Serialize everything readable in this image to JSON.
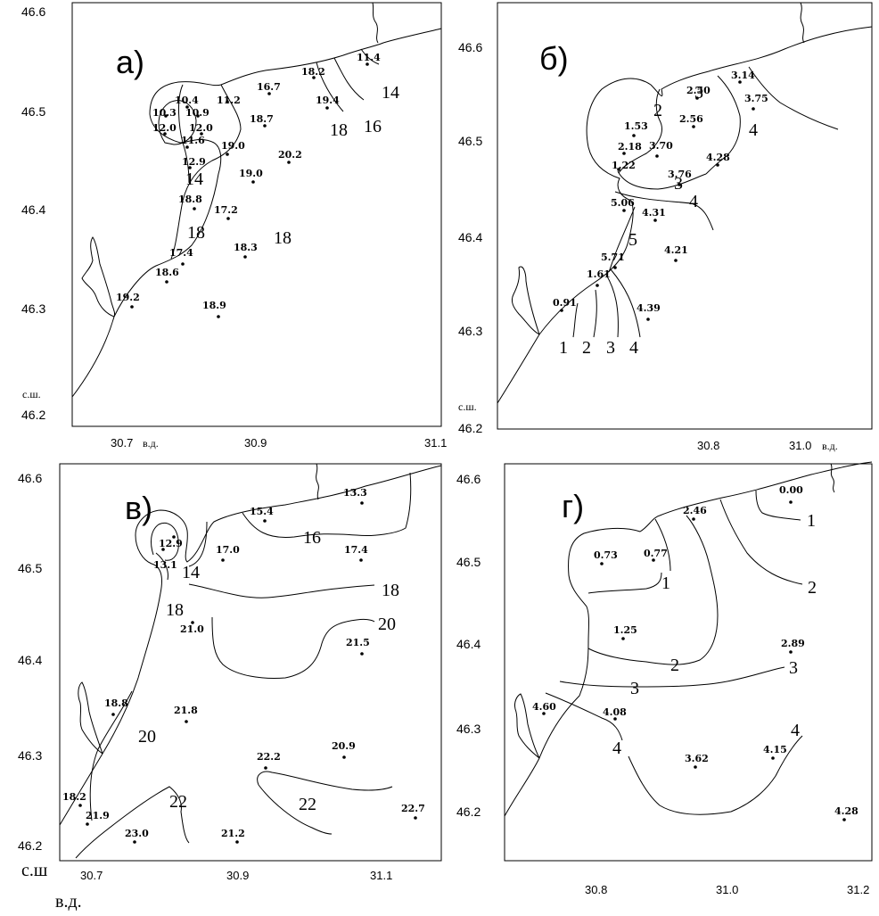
{
  "units": {
    "lat_short": "с.ш.",
    "lon_short": "в.д.",
    "lat_big": "с.ш",
    "lon_big": "в.д."
  },
  "panels": [
    {
      "id": "a",
      "label": "а)",
      "yticks": [
        "46.6",
        "46.5",
        "46.4",
        "46.3",
        "46.2"
      ],
      "xticks": [
        "30.7",
        "30.9",
        "31.1"
      ],
      "stations": [
        "11.4",
        "18.2",
        "16.7",
        "11.2",
        "10.4",
        "10.3",
        "10.9",
        "12.0",
        "12.0",
        "11.6",
        "19.4",
        "18.7",
        "19.0",
        "12.9",
        "20.2",
        "19.0",
        "18.8",
        "17.2",
        "17.4",
        "18.3",
        "18.6",
        "19.2",
        "18.9"
      ],
      "isolines": [
        "14",
        "16",
        "18",
        "14",
        "18",
        "18"
      ]
    },
    {
      "id": "b",
      "label": "б)",
      "yticks": [
        "46.6",
        "46.5",
        "46.4",
        "46.3",
        "46.2"
      ],
      "xticks": [
        "30.8",
        "31.0"
      ],
      "stations": [
        "3.14",
        "2.50",
        "3.75",
        "2.56",
        "1.53",
        "2.18",
        "3.70",
        "4.28",
        "1.22",
        "3.76",
        "5.06",
        "4.31",
        "4.21",
        "5.71",
        "1.61",
        "0.91",
        "4.39"
      ],
      "isolines": [
        "3",
        "2",
        "4",
        "3",
        "4",
        "5",
        "1",
        "2",
        "3",
        "4"
      ]
    },
    {
      "id": "c",
      "label": "в)",
      "yticks": [
        "46.6",
        "46.5",
        "46.4",
        "46.3",
        "46.2"
      ],
      "xticks": [
        "30.7",
        "30.9",
        "31.1"
      ],
      "stations": [
        "13.3",
        "15.4",
        "12.9",
        "17.0",
        "17.4",
        "13.1",
        "21.0",
        "21.5",
        "18.8",
        "21.8",
        "22.2",
        "20.9",
        "18.2",
        "21.9",
        "23.0",
        "21.2",
        "22.7"
      ],
      "isolines": [
        "16",
        "14",
        "18",
        "18",
        "20",
        "20",
        "22",
        "22"
      ]
    },
    {
      "id": "d",
      "label": "г)",
      "yticks": [
        "46.6",
        "46.5",
        "46.4",
        "46.3",
        "46.2"
      ],
      "xticks": [
        "30.8",
        "31.0",
        "31.2"
      ],
      "stations": [
        "0.00",
        "2.46",
        "0.73",
        "0.77",
        "1.25",
        "2.89",
        "4.60",
        "4.08",
        "3.62",
        "4.15",
        "4.28"
      ],
      "isolines": [
        "1",
        "1",
        "2",
        "2",
        "3",
        "3",
        "4",
        "4"
      ]
    }
  ]
}
